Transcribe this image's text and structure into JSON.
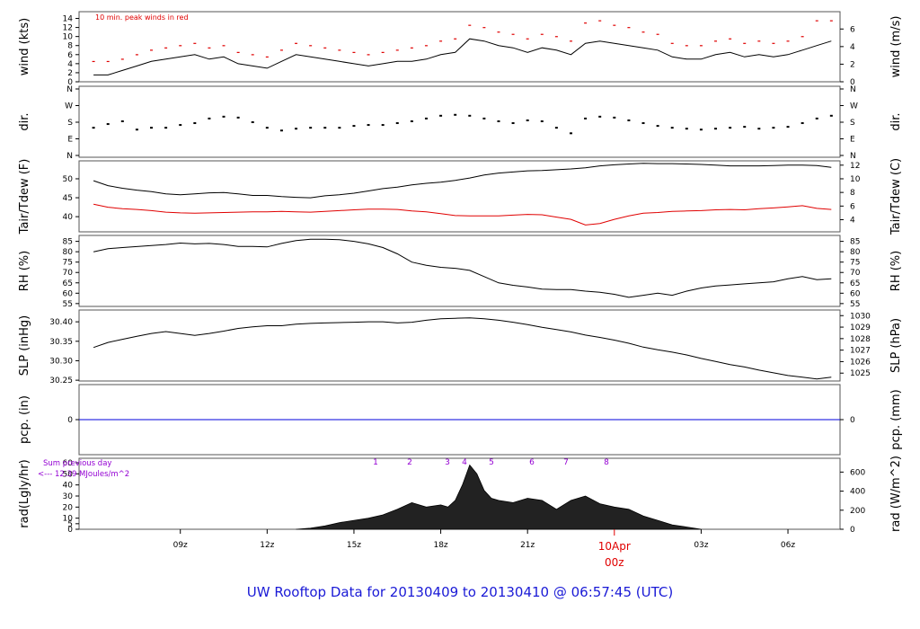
{
  "footer": {
    "text": "UW Rooftop Data for 20130409  to  20130410 @ 06:57:45  (UTC)",
    "color": "#1a1ad6"
  },
  "colors": {
    "series_black": "#000000",
    "dewpoint_red": "#e00000",
    "precip_blue": "#0000dd",
    "radiation_label_purple": "#9400d3",
    "day_marker_red": "#e00000",
    "panel_border": "#555555"
  },
  "chart_data": [
    {
      "type": "line",
      "panel": "wind",
      "annotation": "10 min. peak winds in red",
      "ylabel_left": "wind (kts)",
      "ylabel_right": "wind (m/s)",
      "yticks_left": [
        "0",
        "2",
        "4",
        "6",
        "8",
        "10",
        "12",
        "14"
      ],
      "yticks_right": [
        "0",
        "2",
        "4",
        "6"
      ],
      "ylim": [
        0,
        14.5
      ],
      "x_hours": [
        6,
        6.5,
        7,
        7.5,
        8,
        8.5,
        9,
        9.5,
        10,
        10.5,
        11,
        11.5,
        12,
        12.5,
        13,
        13.5,
        14,
        14.5,
        15,
        15.5,
        16,
        16.5,
        17,
        17.5,
        18,
        18.5,
        19,
        19.5,
        20,
        20.5,
        21,
        21.5,
        22,
        22.5,
        23,
        23.5,
        24,
        24.5,
        25,
        25.5,
        26,
        26.5,
        27,
        27.5,
        28,
        28.5,
        29,
        29.5,
        30,
        30.5,
        31,
        31.5
      ],
      "series": [
        {
          "values": [
            1.5,
            1.5,
            2.5,
            3.5,
            4.5,
            5,
            5.5,
            6,
            5,
            5.5,
            4,
            3.5,
            3,
            4.5,
            6,
            5.5,
            5,
            4.5,
            4,
            3.5,
            4,
            4.5,
            4.5,
            5,
            6,
            6.5,
            9.5,
            9,
            8,
            7.5,
            6.5,
            7.5,
            7,
            6,
            8.5,
            9,
            8.5,
            8,
            7.5,
            7,
            5.5,
            5,
            5,
            6,
            6.5,
            5.5,
            6,
            5.5,
            6,
            7,
            8,
            9
          ]
        },
        {
          "values": [
            4.5,
            4.5,
            5,
            6,
            7,
            7.5,
            8,
            8.5,
            7.5,
            8,
            6.5,
            6,
            5.5,
            7,
            8.5,
            8,
            7.5,
            7,
            6.5,
            6,
            6.5,
            7,
            7.5,
            8,
            9,
            9.5,
            12.5,
            12,
            11,
            10.5,
            9.5,
            10.5,
            10,
            9,
            13,
            13.5,
            12.5,
            12,
            11,
            10.5,
            8.5,
            8,
            8,
            9,
            9.5,
            8.5,
            9,
            8.5,
            9,
            10,
            13.5,
            13.5
          ]
        }
      ]
    },
    {
      "type": "scatter",
      "panel": "direction",
      "ylabel_left": "dir.",
      "ylabel_right": "dir.",
      "yticks_left": [
        "N",
        "E",
        "S",
        "W",
        "N"
      ],
      "yticks_right": [
        "N",
        "E",
        "S",
        "W",
        "N"
      ],
      "ylim": [
        0,
        360
      ],
      "x_hours": [
        6,
        6.5,
        7,
        7.5,
        8,
        8.5,
        9,
        9.5,
        10,
        10.5,
        11,
        11.5,
        12,
        12.5,
        13,
        13.5,
        14,
        14.5,
        15,
        15.5,
        16,
        16.5,
        17,
        17.5,
        18,
        18.5,
        19,
        19.5,
        20,
        20.5,
        21,
        21.5,
        22,
        22.5,
        23,
        23.5,
        24,
        24.5,
        25,
        25.5,
        26,
        26.5,
        27,
        27.5,
        28,
        28.5,
        29,
        29.5,
        30,
        30.5,
        31,
        31.5
      ],
      "series": [
        {
          "values": [
            150,
            170,
            185,
            140,
            150,
            150,
            165,
            175,
            200,
            210,
            205,
            180,
            150,
            135,
            145,
            150,
            150,
            150,
            160,
            165,
            165,
            175,
            185,
            200,
            215,
            220,
            215,
            200,
            185,
            175,
            190,
            185,
            150,
            120,
            200,
            210,
            205,
            190,
            175,
            160,
            150,
            145,
            140,
            145,
            150,
            155,
            145,
            150,
            155,
            175,
            200,
            215
          ]
        }
      ]
    },
    {
      "type": "line",
      "panel": "temperature",
      "ylabel_left": "Tair/Tdew (F)",
      "ylabel_right": "Tair/Tdew (C)",
      "yticks_left": [
        "40",
        "45",
        "50"
      ],
      "yticks_right": [
        "4",
        "6",
        "8",
        "10",
        "12"
      ],
      "ylim": [
        36,
        54.5
      ],
      "x_hours": [
        6,
        6.5,
        7,
        7.5,
        8,
        8.5,
        9,
        9.5,
        10,
        10.5,
        11,
        11.5,
        12,
        12.5,
        13,
        13.5,
        14,
        14.5,
        15,
        15.5,
        16,
        16.5,
        17,
        17.5,
        18,
        18.5,
        19,
        19.5,
        20,
        20.5,
        21,
        21.5,
        22,
        22.5,
        23,
        23.5,
        24,
        24.5,
        25,
        25.5,
        26,
        26.5,
        27,
        27.5,
        28,
        28.5,
        29,
        29.5,
        30,
        30.5,
        31,
        31.5
      ],
      "series": [
        {
          "name": "Tair",
          "values": [
            49.5,
            48.2,
            47.5,
            47,
            46.6,
            46,
            45.8,
            46,
            46.3,
            46.4,
            46,
            45.6,
            45.6,
            45.3,
            45.1,
            45,
            45.5,
            45.8,
            46.2,
            46.8,
            47.4,
            47.8,
            48.4,
            48.8,
            49.1,
            49.6,
            50.2,
            51,
            51.5,
            51.8,
            52.1,
            52.2,
            52.4,
            52.6,
            52.9,
            53.4,
            53.7,
            53.9,
            54.1,
            54,
            54,
            53.9,
            53.8,
            53.6,
            53.4,
            53.4,
            53.4,
            53.5,
            53.6,
            53.6,
            53.5,
            53
          ]
        },
        {
          "name": "Tdew",
          "values": [
            43.3,
            42.5,
            42.1,
            41.9,
            41.6,
            41.2,
            41,
            40.9,
            41,
            41.1,
            41.2,
            41.3,
            41.3,
            41.4,
            41.3,
            41.2,
            41.4,
            41.6,
            41.8,
            42,
            42,
            41.9,
            41.5,
            41.3,
            40.8,
            40.3,
            40.2,
            40.2,
            40.2,
            40.4,
            40.6,
            40.5,
            39.9,
            39.3,
            37.8,
            38.2,
            39.3,
            40.2,
            40.9,
            41.1,
            41.4,
            41.5,
            41.6,
            41.8,
            41.9,
            41.8,
            42.1,
            42.3,
            42.6,
            42.9,
            42.2,
            41.9
          ]
        }
      ]
    },
    {
      "type": "line",
      "panel": "relative_humidity",
      "ylabel_left": "RH (%)",
      "ylabel_right": "RH (%)",
      "yticks_left": [
        "55",
        "60",
        "65",
        "70",
        "75",
        "80",
        "85"
      ],
      "yticks_right": [
        "55",
        "60",
        "65",
        "70",
        "75",
        "80",
        "85"
      ],
      "ylim": [
        54.5,
        87
      ],
      "x_hours": [
        6,
        6.5,
        7,
        7.5,
        8,
        8.5,
        9,
        9.5,
        10,
        10.5,
        11,
        11.5,
        12,
        12.5,
        13,
        13.5,
        14,
        14.5,
        15,
        15.5,
        16,
        16.5,
        17,
        17.5,
        18,
        18.5,
        19,
        19.5,
        20,
        20.5,
        21,
        21.5,
        22,
        22.5,
        23,
        23.5,
        24,
        24.5,
        25,
        25.5,
        26,
        26.5,
        27,
        27.5,
        28,
        28.5,
        29,
        29.5,
        30,
        30.5,
        31,
        31.5
      ],
      "series": [
        {
          "values": [
            80,
            81.5,
            82,
            82.5,
            83,
            83.5,
            84.2,
            83.8,
            84,
            83.5,
            82.6,
            82.6,
            82.3,
            84,
            85.4,
            86,
            86,
            85.8,
            85,
            83.8,
            82,
            79,
            75,
            73.5,
            72.5,
            72,
            71,
            68,
            65,
            63.8,
            63,
            62,
            61.8,
            61.8,
            61,
            60.5,
            59.5,
            58,
            59,
            60,
            59,
            61,
            62.5,
            63.5,
            64,
            64.5,
            65,
            65.5,
            67,
            68,
            66.5,
            67
          ]
        }
      ]
    },
    {
      "type": "line",
      "panel": "sea_level_pressure",
      "ylabel_left": "SLP (inHg)",
      "ylabel_right": "SLP (hPa)",
      "yticks_left": [
        "30.25",
        "30.30",
        "30.35",
        "30.40"
      ],
      "yticks_right": [
        "1025",
        "1026",
        "1027",
        "1028",
        "1029",
        "1030"
      ],
      "ylim": [
        30.248,
        30.428
      ],
      "x_hours": [
        6,
        6.5,
        7,
        7.5,
        8,
        8.5,
        9,
        9.5,
        10,
        10.5,
        11,
        11.5,
        12,
        12.5,
        13,
        13.5,
        14,
        14.5,
        15,
        15.5,
        16,
        16.5,
        17,
        17.5,
        18,
        18.5,
        19,
        19.5,
        20,
        20.5,
        21,
        21.5,
        22,
        22.5,
        23,
        23.5,
        24,
        24.5,
        25,
        25.5,
        26,
        26.5,
        27,
        27.5,
        28,
        28.5,
        29,
        29.5,
        30,
        30.5,
        31,
        31.5
      ],
      "series": [
        {
          "values": [
            30.334,
            30.347,
            30.355,
            30.363,
            30.37,
            30.375,
            30.37,
            30.365,
            30.37,
            30.376,
            30.383,
            30.387,
            30.39,
            30.39,
            30.394,
            30.396,
            30.397,
            30.398,
            30.399,
            30.4,
            30.4,
            30.397,
            30.399,
            30.404,
            30.408,
            30.409,
            30.41,
            30.408,
            30.404,
            30.399,
            30.393,
            30.386,
            30.38,
            30.374,
            30.366,
            30.36,
            30.353,
            30.345,
            30.335,
            30.328,
            30.322,
            30.315,
            30.306,
            30.298,
            30.29,
            30.284,
            30.276,
            30.269,
            30.262,
            30.258,
            30.253,
            30.258
          ]
        }
      ]
    },
    {
      "type": "line",
      "panel": "precipitation",
      "ylabel_left": "pcp. (in)",
      "ylabel_right": "pcp. (mm)",
      "yticks_left": [
        "0"
      ],
      "yticks_right": [
        "0"
      ],
      "ylim": [
        -1,
        1
      ],
      "series": [
        {
          "values": [
            0,
            0
          ]
        }
      ]
    },
    {
      "type": "area",
      "panel": "radiation",
      "ylabel_left": "rad(Lgly/hr)",
      "ylabel_right": "rad (W/m^2)",
      "yticks_left": [
        "0",
        "5",
        "10",
        "20",
        "30",
        "40",
        "50",
        "60"
      ],
      "yticks_right": [
        "0",
        "200",
        "400",
        "600"
      ],
      "ylim": [
        0,
        60
      ],
      "sum_note": [
        "Sum previous day",
        "<--- 12.39 MJoules/m^2"
      ],
      "hour_markers": [
        "1",
        "2",
        "3",
        "4",
        "5",
        "6",
        "7",
        "8"
      ],
      "x_hours": [
        13,
        13.5,
        14,
        14.5,
        15,
        15.5,
        16,
        16.5,
        17,
        17.5,
        18,
        18.25,
        18.5,
        18.75,
        19,
        19.25,
        19.5,
        19.75,
        20,
        20.5,
        21,
        21.5,
        22,
        22.5,
        23,
        23.5,
        24,
        24.5,
        25,
        25.5,
        26,
        26.5,
        27
      ],
      "series": [
        {
          "values": [
            0,
            1,
            3,
            6,
            8,
            10,
            13,
            18,
            24,
            20,
            22,
            20,
            26,
            40,
            58,
            50,
            35,
            28,
            26,
            24,
            28,
            26,
            18,
            26,
            30,
            23,
            20,
            18,
            12,
            8,
            4,
            2,
            0
          ]
        }
      ]
    }
  ],
  "x_axis": {
    "tick_hours": [
      9,
      12,
      15,
      18,
      21,
      27,
      30
    ],
    "tick_labels": [
      "09z",
      "12z",
      "15z",
      "18z",
      "21z",
      "03z",
      "06z"
    ],
    "day_marker": {
      "hour": 24,
      "date_label": "10Apr",
      "time_label": "00z"
    }
  }
}
